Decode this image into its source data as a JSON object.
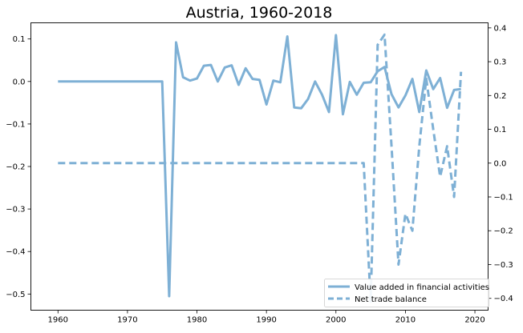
{
  "chart_data": {
    "type": "line",
    "title": "Austria, 1960-2018",
    "xlabel": "",
    "ylabel": "",
    "xlim": [
      1956.1,
      2021.9
    ],
    "ylim": [
      -0.538,
      0.138
    ],
    "y2lim": [
      -0.435,
      0.415
    ],
    "xticks": [
      1960,
      1970,
      1980,
      1990,
      2000,
      2010,
      2020
    ],
    "yticks": [
      0.1,
      0.0,
      -0.1,
      -0.2,
      -0.3,
      -0.4,
      -0.5
    ],
    "y2ticks": [
      0.4,
      0.3,
      0.2,
      0.1,
      0.0,
      -0.1,
      -0.2,
      -0.3,
      -0.4
    ],
    "legend_position": "lower-right",
    "grid": false,
    "color": "#7eb0d5",
    "series": [
      {
        "name": "Value added in financial activities",
        "axis": "left",
        "style": "solid",
        "x": [
          1960,
          1961,
          1962,
          1963,
          1964,
          1965,
          1966,
          1967,
          1968,
          1969,
          1970,
          1971,
          1972,
          1973,
          1974,
          1975,
          1976,
          1977,
          1978,
          1979,
          1980,
          1981,
          1982,
          1983,
          1984,
          1985,
          1986,
          1987,
          1988,
          1989,
          1990,
          1991,
          1992,
          1993,
          1994,
          1995,
          1996,
          1997,
          1998,
          1999,
          2000,
          2001,
          2002,
          2003,
          2004,
          2005,
          2006,
          2007,
          2008,
          2009,
          2010,
          2011,
          2012,
          2013,
          2014,
          2015,
          2016,
          2017,
          2018
        ],
        "values": [
          0,
          0,
          0,
          0,
          0,
          0,
          0,
          0,
          0,
          0,
          0,
          0,
          0,
          0,
          0,
          0,
          -0.505,
          0.092,
          0.01,
          0.002,
          0.007,
          0.037,
          0.039,
          0.0,
          0.033,
          0.038,
          -0.008,
          0.031,
          0.006,
          0.004,
          -0.054,
          0.002,
          -0.002,
          0.106,
          -0.061,
          -0.063,
          -0.041,
          0.0,
          -0.031,
          -0.072,
          0.109,
          -0.077,
          -0.001,
          -0.031,
          -0.003,
          -0.002,
          0.024,
          0.034,
          -0.03,
          -0.061,
          -0.033,
          0.006,
          -0.072,
          0.026,
          -0.018,
          0.008,
          -0.062,
          -0.02,
          -0.018
        ]
      },
      {
        "name": "Net trade balance",
        "axis": "right",
        "style": "dashed",
        "x": [
          1960,
          2003,
          2004,
          2005,
          2006,
          2007,
          2008,
          2009,
          2010,
          2011,
          2012,
          2013,
          2014,
          2015,
          2016,
          2017,
          2018
        ],
        "values": [
          0.0,
          0.0,
          0.0,
          -0.41,
          0.35,
          0.38,
          0.05,
          -0.3,
          -0.15,
          -0.2,
          0.05,
          0.25,
          0.1,
          -0.04,
          0.05,
          -0.1,
          0.27
        ]
      }
    ]
  }
}
